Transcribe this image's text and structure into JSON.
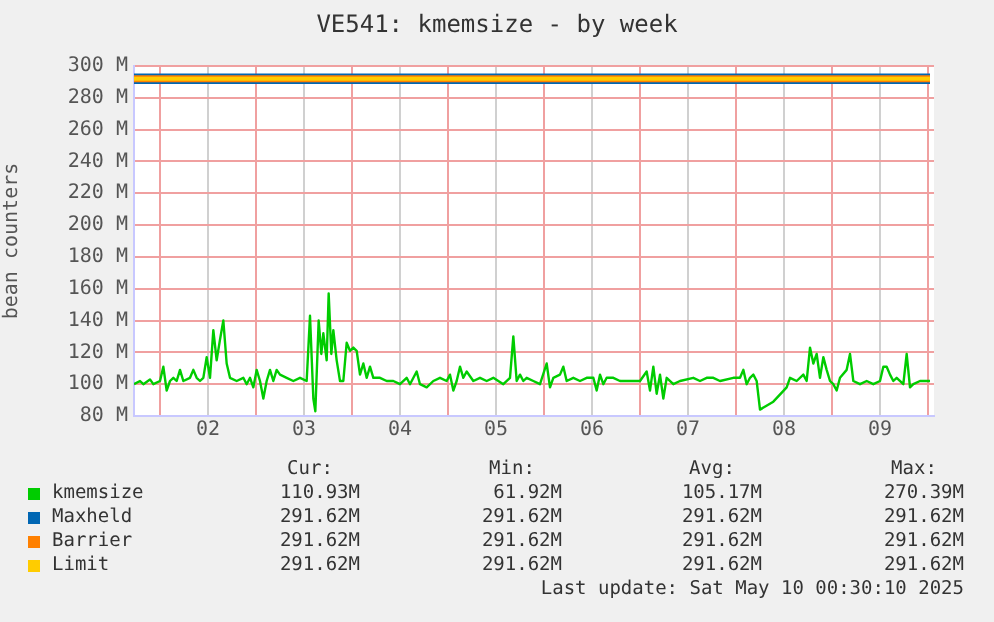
{
  "chart_data": {
    "type": "line",
    "title": "VE541: kmemsize - by week",
    "ylabel": "bean counters",
    "xlim": [
      "2025-05-01T17:30",
      "2025-05-10T01:30"
    ],
    "xticks": [
      {
        "value": "2025-05-02T00:00",
        "label": null
      },
      {
        "value": "2025-05-02T12:00",
        "label": "02"
      },
      {
        "value": "2025-05-03T00:00",
        "label": null
      },
      {
        "value": "2025-05-03T12:00",
        "label": "03"
      },
      {
        "value": "2025-05-04T00:00",
        "label": null
      },
      {
        "value": "2025-05-04T12:00",
        "label": "04"
      },
      {
        "value": "2025-05-05T00:00",
        "label": null
      },
      {
        "value": "2025-05-05T12:00",
        "label": "05"
      },
      {
        "value": "2025-05-06T00:00",
        "label": null
      },
      {
        "value": "2025-05-06T12:00",
        "label": "06"
      },
      {
        "value": "2025-05-07T00:00",
        "label": null
      },
      {
        "value": "2025-05-07T12:00",
        "label": "07"
      },
      {
        "value": "2025-05-08T00:00",
        "label": null
      },
      {
        "value": "2025-05-08T12:00",
        "label": "08"
      },
      {
        "value": "2025-05-09T00:00",
        "label": null
      },
      {
        "value": "2025-05-09T12:00",
        "label": "09"
      },
      {
        "value": "2025-05-10T00:00",
        "label": null
      }
    ],
    "ylim": [
      80,
      300
    ],
    "yticks": [
      {
        "value": 80,
        "label": "80 M"
      },
      {
        "value": 100,
        "label": "100 M"
      },
      {
        "value": 120,
        "label": "120 M"
      },
      {
        "value": 140,
        "label": "140 M"
      },
      {
        "value": 160,
        "label": "160 M"
      },
      {
        "value": 180,
        "label": "180 M"
      },
      {
        "value": 200,
        "label": "200 M"
      },
      {
        "value": 220,
        "label": "220 M"
      },
      {
        "value": 240,
        "label": "240 M"
      },
      {
        "value": 260,
        "label": "260 M"
      },
      {
        "value": 280,
        "label": "280 M"
      },
      {
        "value": 300,
        "label": "300 M"
      }
    ],
    "grid": true,
    "legend": "bottom",
    "marker": "none",
    "series": [
      {
        "name": "kmemsize",
        "color": "#00cc00",
        "x": [
          "2025-05-01T17:30",
          "2025-05-01T19:00",
          "2025-05-01T19:50",
          "2025-05-01T21:30",
          "2025-05-01T22:20",
          "2025-05-02T00:00",
          "2025-05-02T00:50",
          "2025-05-02T01:40",
          "2025-05-02T02:30",
          "2025-05-02T03:20",
          "2025-05-02T04:10",
          "2025-05-02T05:00",
          "2025-05-02T05:50",
          "2025-05-02T07:30",
          "2025-05-02T08:20",
          "2025-05-02T09:10",
          "2025-05-02T10:00",
          "2025-05-02T10:50",
          "2025-05-02T11:40",
          "2025-05-02T12:30",
          "2025-05-02T13:20",
          "2025-05-02T14:10",
          "2025-05-02T15:00",
          "2025-05-02T15:50",
          "2025-05-02T16:40",
          "2025-05-02T17:30",
          "2025-05-02T19:10",
          "2025-05-02T20:50",
          "2025-05-02T21:40",
          "2025-05-02T22:30",
          "2025-05-02T23:20",
          "2025-05-03T00:10",
          "2025-05-03T01:00",
          "2025-05-03T01:50",
          "2025-05-03T02:40",
          "2025-05-03T03:30",
          "2025-05-03T04:20",
          "2025-05-03T05:10",
          "2025-05-03T06:00",
          "2025-05-03T07:40",
          "2025-05-03T09:20",
          "2025-05-03T11:00",
          "2025-05-03T12:40",
          "2025-05-03T13:30",
          "2025-05-03T14:20",
          "2025-05-03T14:50",
          "2025-05-03T15:40",
          "2025-05-03T16:20",
          "2025-05-03T16:50",
          "2025-05-03T17:40",
          "2025-05-03T18:10",
          "2025-05-03T18:50",
          "2025-05-03T19:20",
          "2025-05-03T20:10",
          "2025-05-03T21:00",
          "2025-05-03T21:50",
          "2025-05-03T22:40",
          "2025-05-03T23:30",
          "2025-05-04T00:20",
          "2025-05-04T01:10",
          "2025-05-04T02:00",
          "2025-05-04T02:50",
          "2025-05-04T03:40",
          "2025-05-04T04:30",
          "2025-05-04T05:20",
          "2025-05-04T07:00",
          "2025-05-04T08:40",
          "2025-05-04T10:20",
          "2025-05-04T12:00",
          "2025-05-04T13:40",
          "2025-05-04T14:30",
          "2025-05-04T16:10",
          "2025-05-04T17:00",
          "2025-05-04T18:40",
          "2025-05-04T20:20",
          "2025-05-04T22:00",
          "2025-05-04T23:40",
          "2025-05-05T00:30",
          "2025-05-05T01:20",
          "2025-05-05T02:10",
          "2025-05-05T03:00",
          "2025-05-05T03:50",
          "2025-05-05T04:40",
          "2025-05-05T06:20",
          "2025-05-05T08:00",
          "2025-05-05T09:40",
          "2025-05-05T11:20",
          "2025-05-05T13:50",
          "2025-05-05T15:30",
          "2025-05-05T16:20",
          "2025-05-05T17:10",
          "2025-05-05T18:00",
          "2025-05-05T18:50",
          "2025-05-05T19:40",
          "2025-05-05T21:20",
          "2025-05-05T23:00",
          "2025-05-06T00:40",
          "2025-05-06T01:30",
          "2025-05-06T02:20",
          "2025-05-06T04:00",
          "2025-05-06T04:50",
          "2025-05-06T05:40",
          "2025-05-06T07:20",
          "2025-05-06T09:00",
          "2025-05-06T10:40",
          "2025-05-06T12:20",
          "2025-05-06T13:10",
          "2025-05-06T14:00",
          "2025-05-06T14:50",
          "2025-05-06T15:40",
          "2025-05-06T17:20",
          "2025-05-06T19:00",
          "2025-05-06T20:40",
          "2025-05-07T00:00",
          "2025-05-07T01:40",
          "2025-05-07T02:30",
          "2025-05-07T03:20",
          "2025-05-07T04:10",
          "2025-05-07T05:00",
          "2025-05-07T05:50",
          "2025-05-07T06:40",
          "2025-05-07T08:20",
          "2025-05-07T10:00",
          "2025-05-07T13:20",
          "2025-05-07T15:00",
          "2025-05-07T16:40",
          "2025-05-07T18:20",
          "2025-05-07T20:00",
          "2025-05-07T23:20",
          "2025-05-08T01:00",
          "2025-05-08T01:50",
          "2025-05-08T02:40",
          "2025-05-08T03:30",
          "2025-05-08T04:20",
          "2025-05-08T05:10",
          "2025-05-08T06:00",
          "2025-05-08T09:20",
          "2025-05-08T12:40",
          "2025-05-08T13:30",
          "2025-05-08T15:10",
          "2025-05-08T16:50",
          "2025-05-08T17:40",
          "2025-05-08T18:30",
          "2025-05-08T19:20",
          "2025-05-08T20:10",
          "2025-05-08T21:00",
          "2025-05-08T21:50",
          "2025-05-08T22:40",
          "2025-05-08T23:30",
          "2025-05-09T00:20",
          "2025-05-09T01:10",
          "2025-05-09T02:00",
          "2025-05-09T03:40",
          "2025-05-09T04:30",
          "2025-05-09T05:20",
          "2025-05-09T07:00",
          "2025-05-09T08:40",
          "2025-05-09T10:20",
          "2025-05-09T12:00",
          "2025-05-09T12:50",
          "2025-05-09T13:40",
          "2025-05-09T14:30",
          "2025-05-09T15:20",
          "2025-05-09T16:10",
          "2025-05-09T17:50",
          "2025-05-09T18:40",
          "2025-05-09T19:30",
          "2025-05-09T20:20",
          "2025-05-09T22:00",
          "2025-05-09T23:40",
          "2025-05-10T00:30"
        ],
        "values": [
          100,
          102,
          100,
          103,
          100,
          102,
          111,
          96,
          102,
          104,
          102,
          109,
          102,
          104,
          109,
          104,
          102,
          104,
          117,
          104,
          134,
          115,
          128,
          140,
          113,
          104,
          102,
          104,
          100,
          104,
          98,
          109,
          102,
          91,
          102,
          109,
          102,
          109,
          106,
          104,
          102,
          104,
          102,
          143,
          91,
          83,
          140,
          119,
          132,
          115,
          157,
          119,
          134,
          115,
          102,
          102,
          126,
          121,
          123,
          121,
          106,
          113,
          104,
          111,
          104,
          104,
          102,
          102,
          100,
          104,
          100,
          108,
          100,
          98,
          102,
          104,
          102,
          106,
          96,
          102,
          111,
          104,
          108,
          102,
          104,
          102,
          104,
          100,
          104,
          130,
          102,
          106,
          102,
          104,
          102,
          100,
          113,
          98,
          104,
          106,
          111,
          102,
          104,
          102,
          104,
          104,
          96,
          106,
          100,
          104,
          104,
          102,
          102,
          102,
          108,
          96,
          111,
          94,
          106,
          91,
          104,
          100,
          102,
          104,
          102,
          104,
          104,
          102,
          104,
          104,
          109,
          100,
          104,
          106,
          102,
          84,
          89,
          98,
          104,
          102,
          106,
          102,
          123,
          113,
          119,
          104,
          117,
          109,
          102,
          100,
          96,
          104,
          109,
          119,
          102,
          100,
          102,
          100,
          102,
          111,
          111,
          106,
          102,
          104,
          100,
          119,
          98,
          100,
          102,
          102,
          102
        ]
      },
      {
        "name": "Maxheld",
        "color": "#0066b3",
        "x": [
          "2025-05-01T17:30",
          "2025-05-10T00:30"
        ],
        "values": [
          292,
          292
        ]
      },
      {
        "name": "Barrier",
        "color": "#ff8000",
        "x": [
          "2025-05-01T17:30",
          "2025-05-10T00:30"
        ],
        "values": [
          292,
          292
        ]
      },
      {
        "name": "Limit",
        "color": "#ffcc00",
        "x": [
          "2025-05-01T17:30",
          "2025-05-10T00:30"
        ],
        "values": [
          292,
          292
        ]
      }
    ],
    "annotations": [
      "Cur:",
      "Min:",
      "Avg:",
      "Max:",
      "110.93M",
      "61.92M",
      "105.17M",
      "270.39M",
      "291.62M",
      "291.62M",
      "291.62M",
      "291.62M",
      "291.62M",
      "291.62M",
      "291.62M",
      "291.62M",
      "291.62M",
      "291.62M",
      "291.62M",
      "291.62M",
      "Last update: Sat May 10 00:30:10 2025"
    ]
  }
}
